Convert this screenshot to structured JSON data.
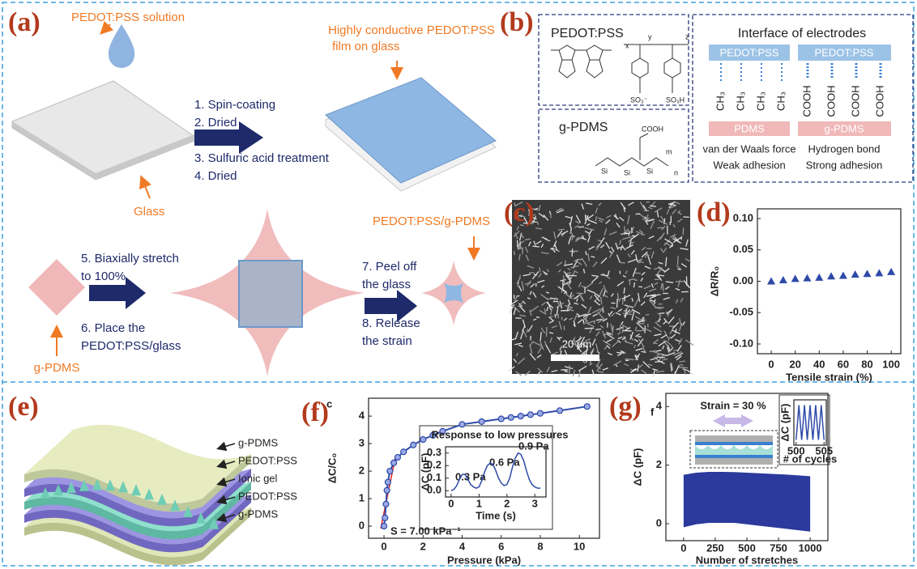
{
  "panel_labels": [
    "(a)",
    "(b)",
    "(c)",
    "(d)",
    "(e)",
    "(f)",
    "(g)"
  ],
  "panel_a": {
    "solution": "PEDOT:PSS solution",
    "film": [
      "Highly conductive PEDOT:PSS",
      "film on glass"
    ],
    "steps_1": [
      "1. Spin-coating",
      "2. Dried",
      "3. Sulfuric acid treatment",
      "4. Dried"
    ],
    "glass": "Glass",
    "steps_2": [
      "5. Biaxially stretch",
      "to 100%",
      "6. Place the",
      "PEDOT:PSS/glass"
    ],
    "steps_3": [
      "7. Peel off",
      "the glass",
      "8. Release",
      "the strain"
    ],
    "result": "PEDOT:PSS/g-PDMS",
    "substrate": "g-PDMS"
  },
  "panel_b": {
    "pedot": {
      "title": "PEDOT:PSS",
      "labels": [
        "x",
        "y",
        "z",
        "SO₃⁻",
        "SO₃H"
      ]
    },
    "gpdms": {
      "title": "g-PDMS",
      "labels": [
        "COOH",
        "m",
        "n",
        "Si",
        "Si",
        "Si"
      ]
    },
    "interface": {
      "title": "Interface of electrodes",
      "left": {
        "top": "PEDOT:PSS",
        "groups": [
          "CH₃",
          "CH₃",
          "CH₃",
          "CH₃"
        ],
        "bottom": "PDMS",
        "caption": [
          "van der Waals force",
          "Weak adhesion"
        ]
      },
      "right": {
        "top": "PEDOT:PSS",
        "groups": [
          "COOH",
          "COOH",
          "COOH",
          "COOH"
        ],
        "bottom": "g-PDMS",
        "caption": [
          "Hydrogen bond",
          "Strong adhesion"
        ]
      }
    }
  },
  "panel_c": {
    "scale_bar": "20 μm"
  },
  "panel_e": {
    "layers": [
      "g-PDMS",
      "PEDOT:PSS",
      "Ionic gel",
      "PEDOT:PSS",
      "g-PDMS"
    ]
  },
  "chart_data": [
    {
      "type": "scatter",
      "x_label": "Tensile strain (%)",
      "y_label": "ΔR/R₀",
      "x": [
        0,
        10,
        20,
        30,
        40,
        50,
        60,
        70,
        80,
        90,
        100
      ],
      "values": [
        0,
        0.002,
        0.004,
        0.005,
        0.006,
        0.008,
        0.009,
        0.011,
        0.012,
        0.013,
        0.015
      ],
      "color": "#2e4aa8",
      "marker": "triangle",
      "xlim": [
        -11.5,
        108
      ],
      "ylim": [
        -0.1155,
        0.1155
      ],
      "xticks": [
        0,
        20,
        40,
        60,
        80,
        100
      ],
      "yticks": [
        {
          "value": -0.1,
          "label": "-0.10"
        },
        -0.05,
        {
          "value": 0,
          "label": "0.00"
        },
        0.05,
        {
          "value": 0.1,
          "label": "0.10"
        }
      ]
    },
    {
      "type": "line",
      "corner_mark": "c",
      "x_label": "Pressure (kPa)",
      "y_label": "ΔC/C₀",
      "annotation": "S = 7.00 kPa⁻¹",
      "annotation_color": "#e02020",
      "x": [
        0,
        0.05,
        0.1,
        0.15,
        0.2,
        0.3,
        0.5,
        0.7,
        1.0,
        1.5,
        2.0,
        2.5,
        3.0,
        4.0,
        5.0,
        6.0,
        6.5,
        7.0,
        7.5,
        8.0,
        9.0,
        10.4
      ],
      "values": [
        0,
        0.3,
        0.8,
        1.3,
        1.6,
        2.0,
        2.3,
        2.5,
        2.7,
        2.95,
        3.15,
        3.3,
        3.45,
        3.7,
        3.8,
        3.9,
        3.95,
        4.0,
        4.05,
        4.1,
        4.2,
        4.35
      ],
      "color": "#2e4aa8",
      "markers": true,
      "xlim": [
        -0.79,
        11.03
      ],
      "ylim": [
        -0.44,
        4.65
      ],
      "xticks": [
        0,
        2,
        4,
        6,
        8,
        10
      ],
      "yticks": [
        0,
        1,
        2,
        3,
        4
      ]
    },
    {
      "type": "line",
      "title": "Response to low pressures",
      "x_label": "Time (s)",
      "y_label": "ΔC (pF)",
      "annotations": [
        "0.3 Pa",
        "0.6 Pa",
        "0.9 Pa"
      ],
      "x": [
        0,
        0.1,
        0.2,
        0.3,
        0.4,
        0.5,
        0.6,
        0.7,
        0.8,
        0.9,
        1.0,
        1.1,
        1.2,
        1.3,
        1.4,
        1.5,
        1.6,
        1.7,
        1.8,
        1.9,
        2.0,
        2.1,
        2.2,
        2.3,
        2.4,
        2.5,
        2.6,
        2.7,
        2.8,
        2.9,
        3.0,
        3.1,
        3.2
      ],
      "values": [
        0,
        0.01,
        0.04,
        0.09,
        0.13,
        0.13,
        0.09,
        0.05,
        0.03,
        0.02,
        0.03,
        0.08,
        0.15,
        0.2,
        0.22,
        0.21,
        0.16,
        0.1,
        0.06,
        0.04,
        0.05,
        0.1,
        0.19,
        0.26,
        0.3,
        0.29,
        0.24,
        0.16,
        0.09,
        0.05,
        0.03,
        0.02,
        0.02
      ],
      "color": "#2e4aa8",
      "markers": false,
      "xlim": [
        -0.2,
        3.4
      ],
      "ylim": [
        -0.05,
        0.35
      ],
      "xticks": [
        0,
        1,
        2,
        3
      ],
      "yticks": [
        {
          "value": 0,
          "label": "0.0"
        },
        0.1,
        0.2,
        0.3
      ]
    },
    {
      "type": "band",
      "corner_mark": "f",
      "annotation": "Strain = 30 %",
      "x_label": "Number of stretches",
      "y_label": "ΔC (pF)",
      "x": [
        0,
        100,
        200,
        300,
        400,
        500,
        600,
        700,
        800,
        900,
        1000
      ],
      "upper": [
        1.65,
        1.72,
        1.75,
        1.75,
        1.74,
        1.72,
        1.7,
        1.68,
        1.66,
        1.63,
        1.6
      ],
      "lower": [
        -0.1,
        0,
        0.05,
        0.05,
        0.05,
        0,
        -0.05,
        -0.1,
        -0.15,
        -0.2,
        -0.25
      ],
      "color": "#2b3a9c",
      "xlim": [
        -140,
        1140
      ],
      "ylim": [
        -0.58,
        4.45
      ],
      "xticks": [
        0,
        250,
        500,
        750,
        1000
      ],
      "yticks": [
        0,
        2,
        4
      ]
    },
    {
      "type": "line",
      "x_label": "# of cycles",
      "y_label": "ΔC (pF)",
      "x": [
        500,
        500.25,
        500.5,
        500.75,
        501,
        501.25,
        501.5,
        501.75,
        502,
        502.25,
        502.5,
        502.75,
        503,
        503.25,
        503.5,
        503.75,
        504,
        504.25,
        504.5,
        504.75,
        505
      ],
      "values": [
        0.05,
        0.85,
        1.7,
        0.85,
        0.05,
        0.85,
        1.7,
        0.85,
        0.05,
        0.85,
        1.7,
        0.85,
        0.05,
        0.85,
        1.7,
        0.85,
        0.05,
        0.85,
        1.7,
        0.85,
        0.05
      ],
      "color": "#2e4aa8",
      "markers": false,
      "xlim": [
        499.6,
        505.4
      ],
      "ylim": [
        -0.2,
        1.95
      ],
      "xticks": [
        500,
        505
      ]
    }
  ]
}
